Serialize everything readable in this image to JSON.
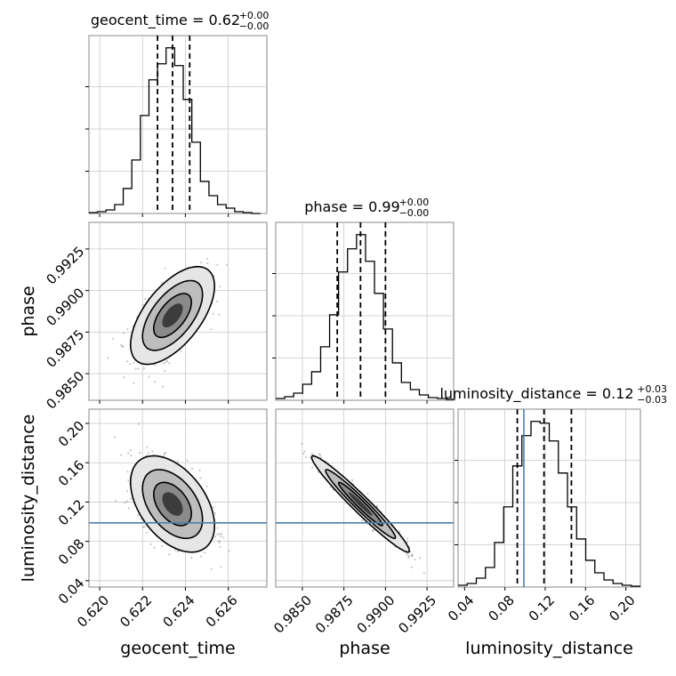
{
  "chart_data": {
    "type": "corner",
    "parameters": [
      {
        "name": "geocent_time",
        "xlabel": "geocent_time",
        "title": "geocent_time = 0.62",
        "title_sup": "+0.00",
        "title_sub": "−0.00",
        "range": [
          0.6195,
          0.6278
        ],
        "ticks": [
          0.62,
          0.622,
          0.624,
          0.626
        ],
        "tick_labels": [
          "0.620",
          "0.622",
          "0.624",
          "0.626"
        ],
        "quantiles": [
          0.6227,
          0.6234,
          0.6242
        ],
        "hist_edges": [
          0.6195,
          0.6199,
          0.6203,
          0.6207,
          0.6211,
          0.6215,
          0.6219,
          0.6223,
          0.6227,
          0.6231,
          0.6235,
          0.6239,
          0.6243,
          0.6247,
          0.6251,
          0.6255,
          0.6259,
          0.6263,
          0.6267,
          0.6271,
          0.6275
        ],
        "hist_values": [
          0.5,
          1.0,
          2.0,
          5.0,
          14.0,
          30.0,
          55.0,
          75.0,
          84.0,
          93.0,
          83.0,
          64.0,
          40.0,
          18.0,
          10.0,
          5.0,
          3.0,
          1.0,
          0.5,
          0
        ]
      },
      {
        "name": "phase",
        "xlabel": "phase",
        "ylabel": "phase",
        "title": "phase = 0.99",
        "title_sup": "+0.00",
        "title_sub": "−0.00",
        "range": [
          0.9834,
          0.9941
        ],
        "ticks": [
          0.985,
          0.9875,
          0.99,
          0.9925
        ],
        "tick_labels": [
          "0.9850",
          "0.9875",
          "0.9900",
          "0.9925"
        ],
        "quantiles": [
          0.9871,
          0.9885,
          0.99
        ],
        "hist_edges": [
          0.9834,
          0.98394,
          0.98448,
          0.98502,
          0.98556,
          0.9861,
          0.98664,
          0.98718,
          0.98772,
          0.98826,
          0.9888,
          0.98934,
          0.98988,
          0.99042,
          0.99096,
          0.9915,
          0.99204,
          0.99258,
          0.99312,
          0.99366,
          0.9942
        ],
        "hist_values": [
          1.0,
          2.0,
          4.0,
          9.0,
          16.0,
          30.0,
          48.0,
          72.0,
          85.0,
          93.0,
          78.0,
          60.0,
          40.0,
          21.0,
          10.0,
          6.0,
          3.0,
          1.5,
          1.0,
          0.5
        ]
      },
      {
        "name": "luminosity_distance",
        "xlabel": "luminosity_distance",
        "ylabel": "luminosity_distance",
        "title": "luminosity_distance = 0.12",
        "title_sup": "+0.03",
        "title_sub": "−0.03",
        "range": [
          0.0335,
          0.2145
        ],
        "ticks": [
          0.04,
          0.08,
          0.12,
          0.16,
          0.2
        ],
        "tick_labels": [
          "0.04",
          "0.08",
          "0.12",
          "0.16",
          "0.20"
        ],
        "quantiles": [
          0.0923,
          0.1188,
          0.146
        ],
        "truth": 0.0988,
        "hist_edges": [
          0.0335,
          0.04255,
          0.0516,
          0.06065,
          0.0697,
          0.07875,
          0.0878,
          0.09685,
          0.1059,
          0.11495,
          0.124,
          0.13305,
          0.1421,
          0.15115,
          0.1602,
          0.16925,
          0.1783,
          0.18735,
          0.1964,
          0.20545,
          0.2145
        ],
        "hist_values": [
          1.0,
          2.0,
          5.0,
          11.0,
          25.0,
          45.0,
          68.0,
          85.0,
          93.0,
          92.0,
          82.0,
          64.0,
          45.0,
          27.0,
          15.0,
          8.0,
          4.0,
          2.0,
          1.0,
          0.5
        ]
      }
    ],
    "contours_2d": [
      {
        "x": "geocent_time",
        "y": "phase",
        "center": [
          0.6234,
          0.9885
        ],
        "sd": [
          0.0008,
          0.0012
        ],
        "corr": 0.6
      },
      {
        "x": "geocent_time",
        "y": "luminosity_distance",
        "center": [
          0.6234,
          0.118
        ],
        "sd": [
          0.0008,
          0.02
        ],
        "corr": -0.45
      },
      {
        "x": "phase",
        "y": "luminosity_distance",
        "center": [
          0.9885,
          0.118
        ],
        "sd": [
          0.0012,
          0.02
        ],
        "corr": -0.97
      }
    ],
    "truth_color": "#4a7fb0",
    "grid": true
  }
}
